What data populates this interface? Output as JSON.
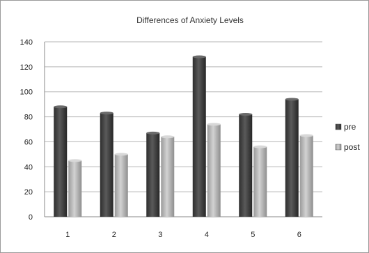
{
  "chart_data": {
    "type": "bar",
    "title": "Differences of Anxiety Levels",
    "xlabel": "",
    "ylabel": "",
    "categories": [
      "1",
      "2",
      "3",
      "4",
      "5",
      "6"
    ],
    "series": [
      {
        "name": "pre",
        "values": [
          88,
          83,
          67,
          128,
          82,
          94
        ],
        "color": "#4a4a4a"
      },
      {
        "name": "post",
        "values": [
          45,
          50,
          64,
          74,
          56,
          65
        ],
        "color": "#b8b8b8"
      }
    ],
    "ylim": [
      0,
      140
    ],
    "yticks": [
      0,
      20,
      40,
      60,
      80,
      100,
      120,
      140
    ],
    "grid": true,
    "legend_position": "right",
    "style": "3d-shaded"
  }
}
